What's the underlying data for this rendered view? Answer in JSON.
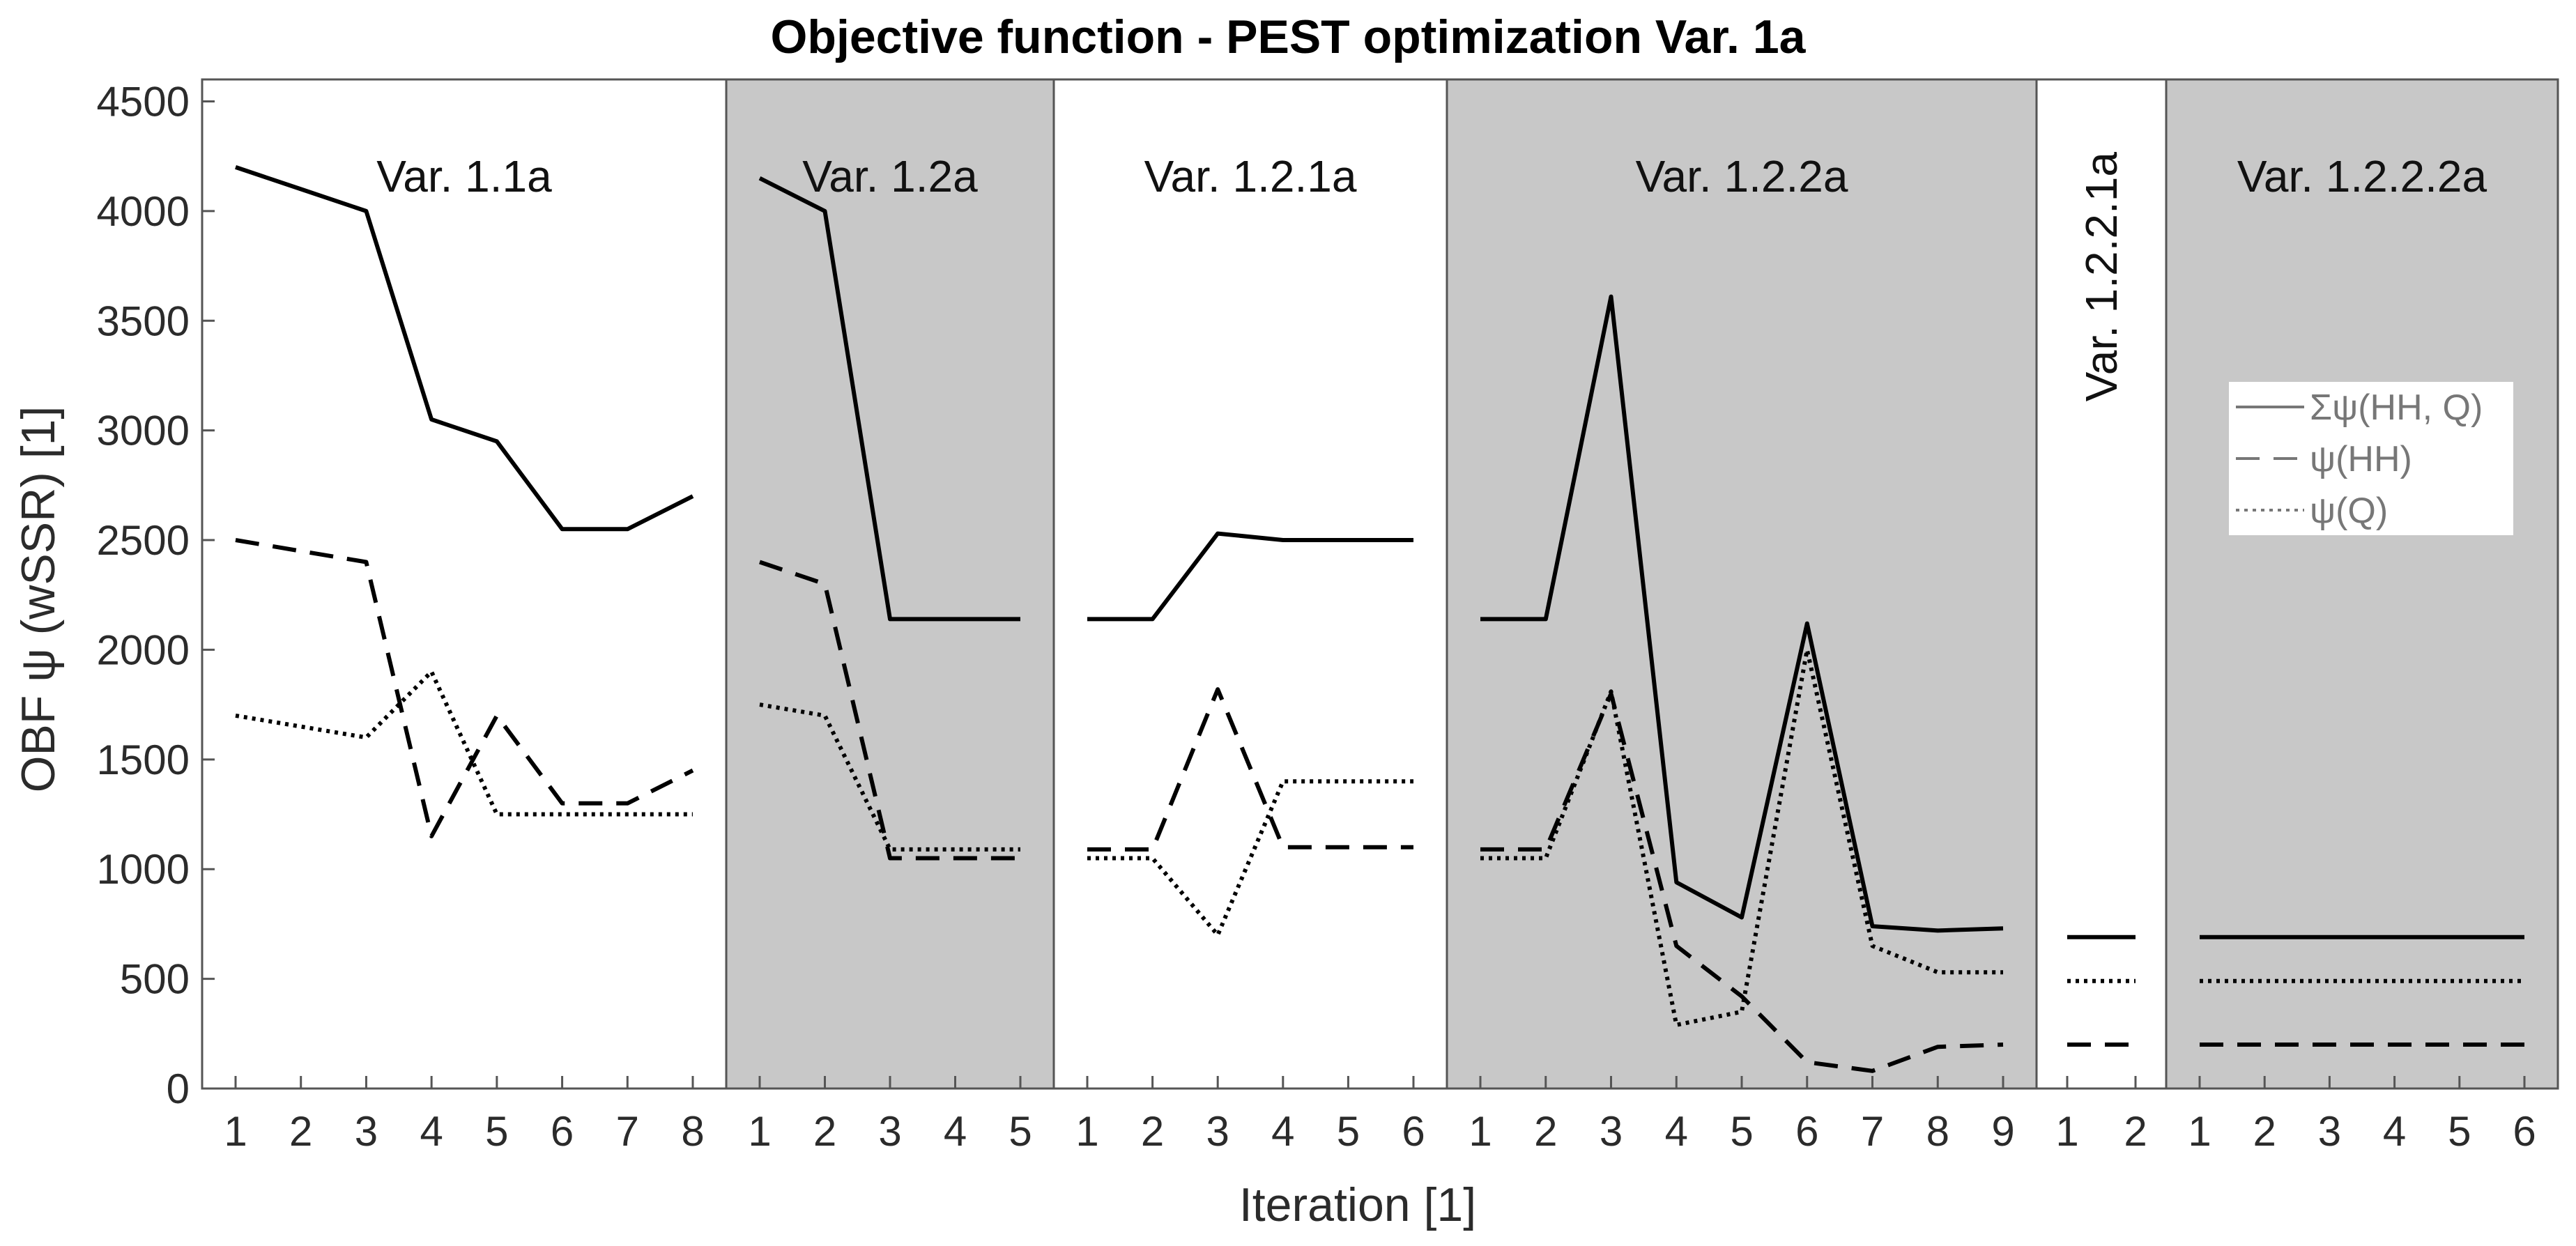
{
  "chart_data": {
    "type": "line",
    "title": "Objective function - PEST optimization Var. 1a",
    "xlabel": "Iteration [1]",
    "ylabel": "OBF ψ (wSSR) [1]",
    "ylim": [
      0,
      4600
    ],
    "yticks": [
      0,
      500,
      1000,
      1500,
      2000,
      2500,
      3000,
      3500,
      4000,
      4500
    ],
    "grid": false,
    "legend": {
      "position": "top-right",
      "entries": [
        {
          "key": "sum",
          "label": "Σψ(HH, Q)",
          "style": "solid"
        },
        {
          "key": "hh",
          "label": "ψ(HH)",
          "style": "dashed"
        },
        {
          "key": "q",
          "label": "ψ(Q)",
          "style": "dotted"
        }
      ]
    },
    "panels": [
      {
        "label": "Var. 1.1a",
        "shaded": false,
        "x": [
          1,
          2,
          3,
          4,
          5,
          6,
          7,
          8
        ],
        "series": [
          {
            "key": "sum",
            "values": [
              4200,
              4100,
              4000,
              3050,
              2950,
              2550,
              2550,
              2700
            ]
          },
          {
            "key": "hh",
            "values": [
              2500,
              2450,
              2400,
              1150,
              1700,
              1300,
              1300,
              1450
            ]
          },
          {
            "key": "q",
            "values": [
              1700,
              1650,
              1600,
              1900,
              1250,
              1250,
              1250,
              1250
            ]
          }
        ]
      },
      {
        "label": "Var. 1.2a",
        "shaded": true,
        "x": [
          1,
          2,
          3,
          4,
          5
        ],
        "series": [
          {
            "key": "sum",
            "values": [
              4150,
              4000,
              2140,
              2140,
              2140
            ]
          },
          {
            "key": "hh",
            "values": [
              2400,
              2300,
              1050,
              1050,
              1050
            ]
          },
          {
            "key": "q",
            "values": [
              1750,
              1700,
              1090,
              1090,
              1090
            ]
          }
        ]
      },
      {
        "label": "Var. 1.2.1a",
        "shaded": false,
        "x": [
          1,
          2,
          3,
          4,
          5,
          6
        ],
        "series": [
          {
            "key": "sum",
            "values": [
              2140,
              2140,
              2530,
              2500,
              2500,
              2500
            ]
          },
          {
            "key": "hh",
            "values": [
              1090,
              1090,
              1820,
              1100,
              1100,
              1100
            ]
          },
          {
            "key": "q",
            "values": [
              1050,
              1050,
              700,
              1400,
              1400,
              1400
            ]
          }
        ]
      },
      {
        "label": "Var. 1.2.2a",
        "shaded": true,
        "x": [
          1,
          2,
          3,
          4,
          5,
          6,
          7,
          8,
          9
        ],
        "series": [
          {
            "key": "sum",
            "values": [
              2140,
              2140,
              3610,
              940,
              780,
              2120,
              740,
              720,
              730
            ]
          },
          {
            "key": "hh",
            "values": [
              1090,
              1090,
              1800,
              650,
              420,
              120,
              80,
              190,
              200
            ]
          },
          {
            "key": "q",
            "values": [
              1050,
              1050,
              1810,
              290,
              350,
              2000,
              650,
              530,
              530
            ]
          }
        ]
      },
      {
        "label": "Var. 1.2.2.1a",
        "shaded": false,
        "vertical_label": true,
        "x": [
          1,
          2
        ],
        "series": [
          {
            "key": "sum",
            "values": [
              690,
              690
            ]
          },
          {
            "key": "hh",
            "values": [
              200,
              200
            ]
          },
          {
            "key": "q",
            "values": [
              490,
              490
            ]
          }
        ]
      },
      {
        "label": "Var. 1.2.2.2a",
        "shaded": true,
        "x": [
          1,
          2,
          3,
          4,
          5,
          6
        ],
        "series": [
          {
            "key": "sum",
            "values": [
              690,
              690,
              690,
              690,
              690,
              690
            ]
          },
          {
            "key": "hh",
            "values": [
              200,
              200,
              200,
              200,
              200,
              200
            ]
          },
          {
            "key": "q",
            "values": [
              490,
              490,
              490,
              490,
              490,
              490
            ]
          }
        ]
      }
    ],
    "colors": {
      "line": "#000000",
      "shade": "#c8c8c8",
      "axis": "#555555"
    }
  }
}
